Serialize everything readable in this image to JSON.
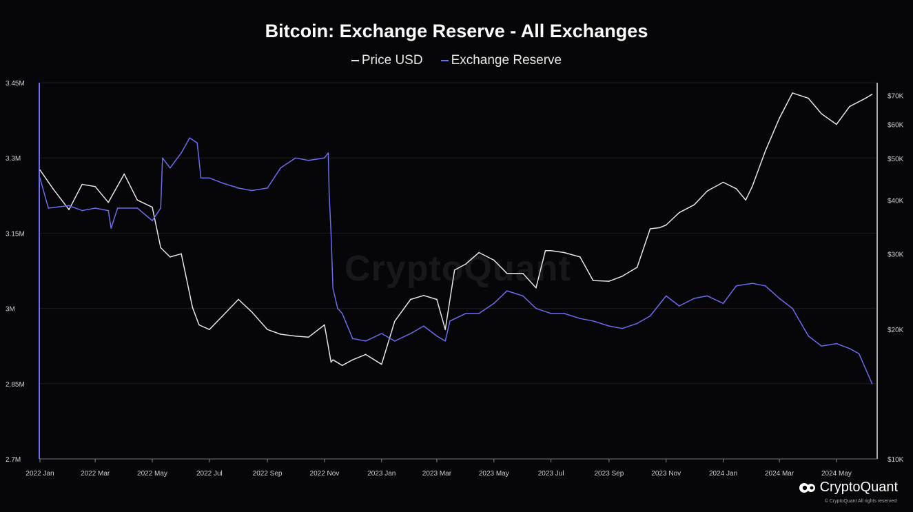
{
  "chart_data": {
    "type": "line",
    "title": "Bitcoin: Exchange Reserve - All Exchanges",
    "legend_position": "top-center",
    "grid": true,
    "colors": {
      "price": "#e6e6e6",
      "reserve": "#6c6cf0",
      "background": "#060608",
      "grid": "#1c1c22"
    },
    "x_ticks": [
      "2022 Jan",
      "2022 Mar",
      "2022 May",
      "2022 Jul",
      "2022 Sep",
      "2022 Nov",
      "2023 Jan",
      "2023 Mar",
      "2023 May",
      "2023 Jul",
      "2023 Sep",
      "2023 Nov",
      "2024 Jan",
      "2024 Mar",
      "2024 May"
    ],
    "y_left": {
      "ticks": [
        "3.45M",
        "3.3M",
        "3.15M",
        "3M",
        "2.85M",
        "2.7M"
      ],
      "ylim": [
        2700000,
        3450000
      ]
    },
    "y_right": {
      "ticks": [
        "$70K",
        "$60K",
        "$50K",
        "$40K",
        "$30K",
        "$20K",
        "$10K"
      ],
      "tick_values": [
        70000,
        60000,
        50000,
        40000,
        30000,
        20000,
        10000
      ],
      "ylim": [
        10000,
        75000
      ],
      "scale": "log"
    },
    "series": [
      {
        "name": "Price USD",
        "axis": "right",
        "x": [
          "2022-01-01",
          "2022-01-15",
          "2022-02-01",
          "2022-02-15",
          "2022-03-01",
          "2022-03-15",
          "2022-04-01",
          "2022-04-15",
          "2022-05-01",
          "2022-05-10",
          "2022-05-20",
          "2022-06-01",
          "2022-06-13",
          "2022-06-20",
          "2022-07-01",
          "2022-07-15",
          "2022-08-01",
          "2022-08-15",
          "2022-09-01",
          "2022-09-15",
          "2022-10-01",
          "2022-10-15",
          "2022-11-01",
          "2022-11-08",
          "2022-11-10",
          "2022-11-20",
          "2022-12-01",
          "2022-12-15",
          "2023-01-01",
          "2023-01-15",
          "2023-02-01",
          "2023-02-15",
          "2023-03-01",
          "2023-03-10",
          "2023-03-20",
          "2023-04-01",
          "2023-04-15",
          "2023-05-01",
          "2023-05-15",
          "2023-06-01",
          "2023-06-15",
          "2023-06-25",
          "2023-07-01",
          "2023-07-15",
          "2023-08-01",
          "2023-08-15",
          "2023-09-01",
          "2023-09-15",
          "2023-10-01",
          "2023-10-15",
          "2023-10-25",
          "2023-11-01",
          "2023-11-15",
          "2023-12-01",
          "2023-12-15",
          "2024-01-01",
          "2024-01-15",
          "2024-01-25",
          "2024-02-01",
          "2024-02-15",
          "2024-03-01",
          "2024-03-15",
          "2024-04-01",
          "2024-04-15",
          "2024-05-01",
          "2024-05-15",
          "2024-06-01",
          "2024-06-08"
        ],
        "values": [
          47000,
          42500,
          38000,
          43500,
          43000,
          39500,
          46000,
          40000,
          38500,
          31000,
          29500,
          30000,
          22500,
          20500,
          20000,
          21500,
          23500,
          22000,
          20000,
          19500,
          19300,
          19200,
          20500,
          16800,
          17000,
          16500,
          17000,
          17500,
          16600,
          20900,
          23500,
          24000,
          23500,
          20000,
          27500,
          28400,
          30200,
          29000,
          27000,
          27000,
          25000,
          30500,
          30500,
          30200,
          29500,
          26000,
          25900,
          26600,
          27900,
          34300,
          34500,
          35000,
          37400,
          39000,
          42000,
          44000,
          42500,
          40000,
          43000,
          52000,
          62000,
          71000,
          69000,
          63500,
          60000,
          66000,
          69000,
          70500
        ]
      },
      {
        "name": "Exchange Reserve",
        "axis": "left",
        "x": [
          "2022-01-01",
          "2022-01-10",
          "2022-02-01",
          "2022-02-15",
          "2022-03-01",
          "2022-03-15",
          "2022-03-18",
          "2022-03-25",
          "2022-04-15",
          "2022-05-01",
          "2022-05-10",
          "2022-05-12",
          "2022-05-20",
          "2022-06-01",
          "2022-06-10",
          "2022-06-18",
          "2022-06-22",
          "2022-07-01",
          "2022-07-15",
          "2022-08-01",
          "2022-08-15",
          "2022-09-01",
          "2022-09-15",
          "2022-10-01",
          "2022-10-15",
          "2022-11-01",
          "2022-11-05",
          "2022-11-06",
          "2022-11-08",
          "2022-11-10",
          "2022-11-15",
          "2022-11-20",
          "2022-12-01",
          "2022-12-15",
          "2023-01-01",
          "2023-01-15",
          "2023-02-01",
          "2023-02-15",
          "2023-03-01",
          "2023-03-10",
          "2023-03-15",
          "2023-04-01",
          "2023-04-15",
          "2023-05-01",
          "2023-05-15",
          "2023-06-01",
          "2023-06-15",
          "2023-07-01",
          "2023-07-15",
          "2023-08-01",
          "2023-08-15",
          "2023-09-01",
          "2023-09-15",
          "2023-10-01",
          "2023-10-15",
          "2023-11-01",
          "2023-11-15",
          "2023-12-01",
          "2023-12-15",
          "2024-01-01",
          "2024-01-15",
          "2024-02-01",
          "2024-02-15",
          "2024-03-01",
          "2024-03-15",
          "2024-04-01",
          "2024-04-15",
          "2024-05-01",
          "2024-05-15",
          "2024-05-25",
          "2024-06-01",
          "2024-06-08"
        ],
        "values": [
          3260000,
          3200000,
          3205000,
          3195000,
          3200000,
          3195000,
          3160000,
          3200000,
          3200000,
          3175000,
          3200000,
          3300000,
          3280000,
          3310000,
          3340000,
          3330000,
          3260000,
          3260000,
          3250000,
          3240000,
          3235000,
          3240000,
          3280000,
          3300000,
          3295000,
          3300000,
          3310000,
          3230000,
          3150000,
          3040000,
          3000000,
          2990000,
          2940000,
          2935000,
          2950000,
          2935000,
          2950000,
          2965000,
          2945000,
          2935000,
          2975000,
          2990000,
          2990000,
          3010000,
          3035000,
          3025000,
          3000000,
          2990000,
          2990000,
          2980000,
          2975000,
          2965000,
          2960000,
          2970000,
          2985000,
          3025000,
          3005000,
          3020000,
          3025000,
          3010000,
          3045000,
          3050000,
          3045000,
          3020000,
          3000000,
          2945000,
          2925000,
          2930000,
          2920000,
          2910000,
          2880000,
          2850000
        ]
      }
    ]
  },
  "branding": {
    "watermark": "CryptoQuant",
    "logo": "CryptoQuant",
    "copyright": "© CryptoQuant All rights reserved."
  }
}
